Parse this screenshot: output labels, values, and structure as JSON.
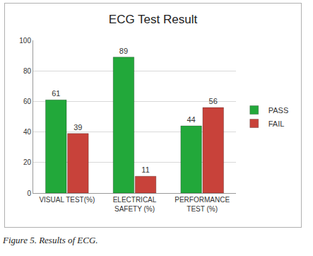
{
  "chart_data": {
    "type": "bar",
    "title": "ECG Test Result",
    "categories": [
      "VISUAL TEST(%)",
      "ELECTRICAL SAFETY (%)",
      "PERFORMANCE TEST (%)"
    ],
    "series": [
      {
        "name": "PASS",
        "color": "#22a83a",
        "values": [
          61,
          89,
          44
        ]
      },
      {
        "name": "FAIL",
        "color": "#c8423a",
        "values": [
          39,
          11,
          56
        ]
      }
    ],
    "ylim": [
      0,
      100
    ],
    "yticks": [
      0,
      20,
      40,
      60,
      80,
      100
    ],
    "grid": true,
    "legend": "right",
    "data_labels": true
  },
  "caption": "Figure 5. Results of ECG."
}
